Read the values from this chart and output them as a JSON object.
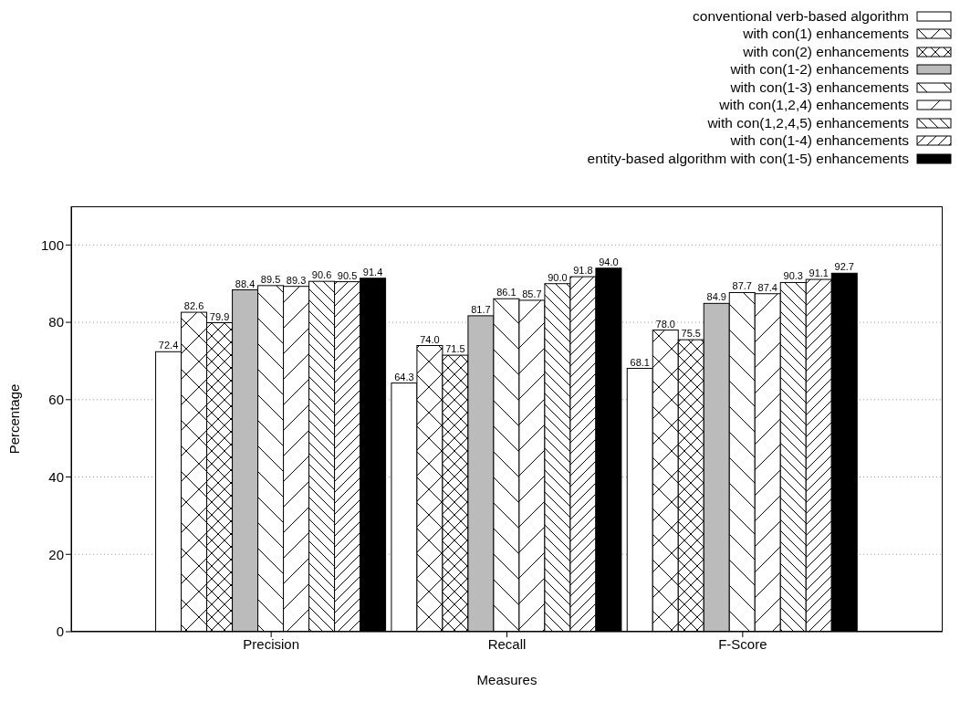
{
  "chart_data": {
    "type": "bar",
    "xlabel": "Measures",
    "ylabel": "Percentage",
    "categories": [
      "Precision",
      "Recall",
      "F-Score"
    ],
    "series": [
      {
        "name": "conventional verb-based algorithm",
        "color": "#ffffff",
        "values": [
          72.4,
          64.3,
          68.1
        ],
        "value_labels": [
          "72.4",
          "64.3",
          "68.1"
        ]
      },
      {
        "name": "with con(1) enhancements",
        "color": "#ffffff",
        "values": [
          82.6,
          74.0,
          78.0
        ],
        "value_labels": [
          "82.6",
          "74.0",
          "78.0"
        ]
      },
      {
        "name": "with con(2) enhancements",
        "color": "#ffffff",
        "values": [
          79.9,
          71.5,
          75.5
        ],
        "value_labels": [
          "79.9",
          "71.5",
          "75.5"
        ]
      },
      {
        "name": "with con(1-2) enhancements",
        "color": "#bbbbbb",
        "values": [
          88.4,
          81.7,
          84.9
        ],
        "value_labels": [
          "88.4",
          "81.7",
          "84.9"
        ]
      },
      {
        "name": "with con(1-3) enhancements",
        "color": "#ffffff",
        "values": [
          89.5,
          86.1,
          87.7
        ],
        "value_labels": [
          "89.5",
          "86.1",
          "87.7"
        ]
      },
      {
        "name": "with con(1,2,4) enhancements",
        "color": "#ffffff",
        "values": [
          89.3,
          85.7,
          87.4
        ],
        "value_labels": [
          "89.3",
          "85.7",
          "87.4"
        ]
      },
      {
        "name": "with con(1,2,4,5) enhancements",
        "color": "#ffffff",
        "values": [
          90.6,
          90.0,
          90.3
        ],
        "value_labels": [
          "90.6",
          "90.0",
          "90.3"
        ]
      },
      {
        "name": "with con(1-4) enhancements",
        "color": "#ffffff",
        "values": [
          90.5,
          91.8,
          91.1
        ],
        "value_labels": [
          "90.5",
          "91.8",
          "91.1"
        ]
      },
      {
        "name": "entity-based algorithm with con(1-5) enhancements",
        "color": "#000000",
        "values": [
          91.4,
          94.0,
          92.7
        ],
        "value_labels": [
          "91.4",
          "94.0",
          "92.7"
        ]
      }
    ],
    "ylim": [
      0,
      110
    ],
    "yticks": [
      0,
      20,
      40,
      60,
      80,
      100
    ],
    "grid": "y",
    "legend": "top right"
  }
}
